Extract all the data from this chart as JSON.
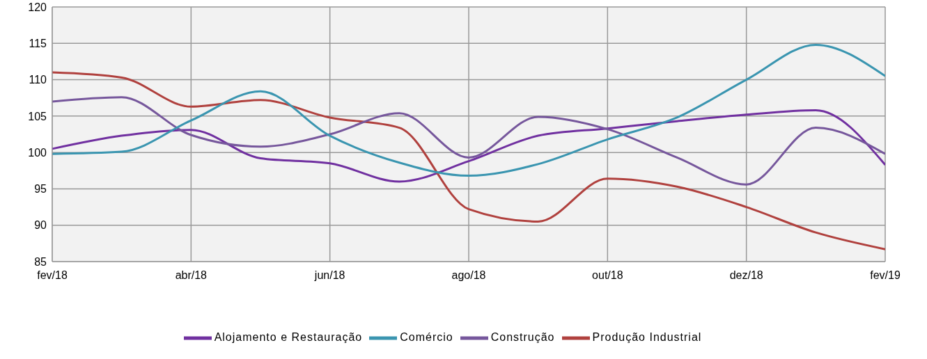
{
  "chart_data": {
    "type": "line",
    "categories": [
      "fev/18",
      null,
      "abr/18",
      null,
      "jun/18",
      null,
      "ago/18",
      null,
      "out/18",
      null,
      "dez/18",
      null,
      "fev/19"
    ],
    "series": [
      {
        "name": "Alojamento e Restauração",
        "color": "#7030a0",
        "values": [
          100.5,
          102.3,
          103.1,
          99.2,
          98.5,
          96,
          98.8,
          102.3,
          103.3,
          104.3,
          105.2,
          105.8,
          98.3
        ]
      },
      {
        "name": "Produção Industrial",
        "color": "#b0413e",
        "values": [
          111,
          110.3,
          106.3,
          107.2,
          104.8,
          103.4,
          92.2,
          90.5,
          96.4,
          95.3,
          92.5,
          89,
          86.7
        ]
      },
      {
        "name": "Construção",
        "color": "#76579c",
        "values": [
          107,
          107.6,
          102.4,
          100.8,
          102.5,
          105.4,
          99.3,
          104.9,
          103.2,
          99.3,
          95.6,
          103.4,
          99.8
        ]
      },
      {
        "name": "Comércio",
        "color": "#3a95b0",
        "values": [
          99.8,
          100.1,
          104.4,
          108.4,
          102.3,
          98.6,
          96.8,
          98.4,
          101.8,
          104.8,
          110,
          114.8,
          110.5
        ]
      }
    ],
    "ylim": [
      85,
      120
    ],
    "yticks": [
      85,
      90,
      95,
      100,
      105,
      110,
      115,
      120
    ],
    "grid": true,
    "legend": "bottom",
    "marker": "none",
    "line_style": "solid"
  }
}
